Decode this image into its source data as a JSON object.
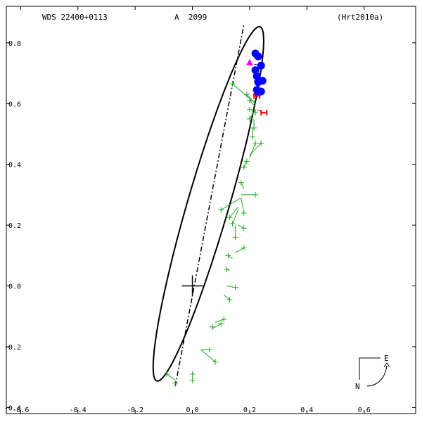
{
  "header": {
    "object": "WDS 22400+0113",
    "pair": "A  2099",
    "reference": "(Hrt2010a)"
  },
  "compass": {
    "east_label": "E",
    "north_label": "N"
  },
  "colors": {
    "axes": "#000000",
    "orbit": "#000000",
    "micrometer": "#22aa22",
    "speckle": "#0000ff",
    "hipparcos": "#ff0000",
    "first_obs": "#ff00ff"
  },
  "chart_data": {
    "type": "scatter",
    "title": "",
    "xlabel": "",
    "ylabel": "",
    "xlim": [
      -0.65,
      0.78
    ],
    "ylim": [
      -0.42,
      0.92
    ],
    "x_ticks": [
      -0.6,
      -0.4,
      -0.2,
      0.0,
      0.2,
      0.4,
      0.6
    ],
    "x_tick_labels": [
      "-0.6",
      "-0.4",
      "-0.2",
      "0.0",
      "0.2",
      "0.4",
      "0.6"
    ],
    "y_ticks": [
      0.8,
      0.6,
      0.4,
      0.2,
      0.0,
      -0.2,
      -0.4
    ],
    "y_tick_labels": [
      "0.8",
      "0.6",
      "0.4",
      "0.2",
      "0.0",
      "-0.2",
      "-0.4"
    ],
    "primary": [
      0.0,
      0.0
    ],
    "orbit": {
      "center": [
        0.056,
        0.27
      ],
      "semi_major": 0.61,
      "semi_minor": 0.072,
      "angle_deg": 72.8
    },
    "line_of_nodes": [
      [
        -0.06,
        -0.33
      ],
      [
        0.18,
        0.86
      ]
    ],
    "series": [
      {
        "marker": "micrometer",
        "points": [
          {
            "obs": [
              0.14,
              0.665
            ],
            "pred": [
              0.22,
              0.6
            ]
          },
          {
            "obs": [
              0.19,
              0.63
            ],
            "pred": [
              0.22,
              0.6
            ]
          },
          {
            "obs": [
              0.2,
              0.61
            ],
            "pred": [
              0.22,
              0.59
            ]
          },
          {
            "obs": [
              0.2,
              0.58
            ],
            "pred": [
              0.22,
              0.58
            ]
          },
          {
            "obs": [
              0.2,
              0.55
            ],
            "pred": [
              0.22,
              0.58
            ]
          },
          {
            "obs": [
              0.22,
              0.57
            ],
            "pred": [
              0.22,
              0.58
            ]
          },
          {
            "obs": [
              0.215,
              0.52
            ],
            "pred": [
              0.215,
              0.55
            ]
          },
          {
            "obs": [
              0.21,
              0.49
            ],
            "pred": [
              0.21,
              0.52
            ]
          },
          {
            "obs": [
              0.24,
              0.47
            ],
            "pred": [
              0.2,
              0.43
            ]
          },
          {
            "obs": [
              0.22,
              0.47
            ],
            "pred": [
              0.2,
              0.42
            ]
          },
          {
            "obs": [
              0.19,
              0.41
            ],
            "pred": [
              0.19,
              0.41
            ]
          },
          {
            "obs": [
              0.18,
              0.39
            ],
            "pred": [
              0.19,
              0.41
            ]
          },
          {
            "obs": [
              0.17,
              0.34
            ],
            "pred": [
              0.18,
              0.32
            ]
          },
          {
            "obs": [
              0.22,
              0.3
            ],
            "pred": [
              0.17,
              0.3
            ]
          },
          {
            "obs": [
              0.1,
              0.25
            ],
            "pred": [
              0.17,
              0.29
            ]
          },
          {
            "obs": [
              0.18,
              0.24
            ],
            "pred": [
              0.17,
              0.29
            ]
          },
          {
            "obs": [
              0.13,
              0.225
            ],
            "pred": [
              0.16,
              0.26
            ]
          },
          {
            "obs": [
              0.14,
              0.205
            ],
            "pred": [
              0.16,
              0.25
            ]
          },
          {
            "obs": [
              0.18,
              0.19
            ],
            "pred": [
              0.16,
              0.2
            ]
          },
          {
            "obs": [
              0.15,
              0.16
            ],
            "pred": [
              0.15,
              0.2
            ]
          },
          {
            "obs": [
              0.18,
              0.125
            ],
            "pred": [
              0.15,
              0.11
            ]
          },
          {
            "obs": [
              0.125,
              0.1
            ],
            "pred": [
              0.14,
              0.09
            ]
          },
          {
            "obs": [
              0.12,
              0.055
            ],
            "pred": [
              0.13,
              0.05
            ]
          },
          {
            "obs": [
              0.15,
              -0.005
            ],
            "pred": [
              0.12,
              0.0
            ]
          },
          {
            "obs": [
              0.13,
              -0.045
            ],
            "pred": [
              0.11,
              -0.03
            ]
          },
          {
            "obs": [
              0.11,
              -0.11
            ],
            "pred": [
              0.08,
              -0.12
            ]
          },
          {
            "obs": [
              0.1,
              -0.125
            ],
            "pred": [
              0.07,
              -0.14
            ]
          },
          {
            "obs": [
              0.07,
              -0.135
            ],
            "pred": [
              0.07,
              -0.14
            ]
          },
          {
            "obs": [
              0.06,
              -0.21
            ],
            "pred": [
              0.03,
              -0.21
            ]
          },
          {
            "obs": [
              0.08,
              -0.25
            ],
            "pred": [
              0.03,
              -0.21
            ]
          },
          {
            "obs": [
              0.0,
              -0.29
            ],
            "pred": [
              0.0,
              -0.29
            ]
          },
          {
            "obs": [
              0.0,
              -0.31
            ],
            "pred": [
              0.0,
              -0.3
            ]
          },
          {
            "obs": [
              -0.09,
              -0.29
            ],
            "pred": [
              -0.06,
              -0.31
            ]
          },
          {
            "obs": [
              -0.06,
              -0.32
            ],
            "pred": [
              -0.06,
              -0.32
            ]
          }
        ]
      },
      {
        "marker": "speckle",
        "points": [
          {
            "obs": [
              0.22,
              0.765
            ],
            "pred": [
              0.215,
              0.755
            ]
          },
          {
            "obs": [
              0.23,
              0.755
            ],
            "pred": [
              0.215,
              0.75
            ]
          },
          {
            "obs": [
              0.24,
              0.725
            ],
            "pred": [
              0.215,
              0.73
            ]
          },
          {
            "obs": [
              0.22,
              0.71
            ],
            "pred": [
              0.215,
              0.71
            ]
          },
          {
            "obs": [
              0.225,
              0.69
            ],
            "pred": [
              0.215,
              0.69
            ]
          },
          {
            "obs": [
              0.245,
              0.675
            ],
            "pred": [
              0.215,
              0.675
            ]
          },
          {
            "obs": [
              0.23,
              0.67
            ],
            "pred": [
              0.215,
              0.67
            ]
          },
          {
            "obs": [
              0.225,
              0.645
            ],
            "pred": [
              0.215,
              0.645
            ]
          },
          {
            "obs": [
              0.24,
              0.64
            ],
            "pred": [
              0.215,
              0.64
            ]
          },
          {
            "obs": [
              0.23,
              0.635
            ],
            "pred": [
              0.215,
              0.635
            ]
          }
        ]
      },
      {
        "marker": "hipparcos",
        "points": [
          {
            "obs": [
              0.225,
              0.625
            ],
            "pred": [
              0.215,
              0.625
            ]
          },
          {
            "obs": [
              0.25,
              0.57
            ],
            "pred": [
              0.225,
              0.58
            ]
          }
        ]
      },
      {
        "marker": "first_obs",
        "points": [
          {
            "obs": [
              0.2,
              0.735
            ],
            "pred": [
              0.2,
              0.735
            ]
          }
        ]
      }
    ]
  }
}
